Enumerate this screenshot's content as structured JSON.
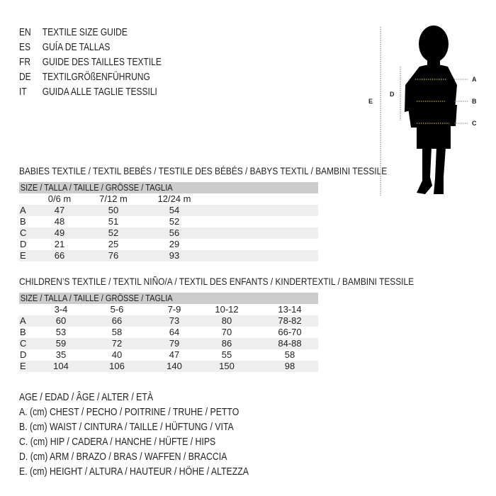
{
  "titles": [
    {
      "code": "EN",
      "text": "TEXTILE SIZE GUIDE"
    },
    {
      "code": "ES",
      "text": "GUÍA DE TALLAS"
    },
    {
      "code": "FR",
      "text": "GUIDE DES TAILLES TEXTILE"
    },
    {
      "code": "DE",
      "text": "TEXTILGRÖßENFÜHRUNG"
    },
    {
      "code": "IT",
      "text": "GUIDA ALLE TAGLIE TESSILI"
    }
  ],
  "babies": {
    "heading": "BABIES TEXTILE / TEXTIL BEBÉS / TESTILE DES BÉBÉS / BABYS TEXTIL / BAMBINI TESSILE",
    "size_header": "SIZE / TALLA / TAILLE / GRÖSSE / TAGLIA",
    "columns": [
      "0/6 m",
      "7/12 m",
      "12/24 m"
    ],
    "rows": [
      {
        "label": "A",
        "values": [
          "47",
          "50",
          "54"
        ]
      },
      {
        "label": "B",
        "values": [
          "48",
          "51",
          "52"
        ]
      },
      {
        "label": "C",
        "values": [
          "49",
          "52",
          "56"
        ]
      },
      {
        "label": "D",
        "values": [
          "21",
          "25",
          "29"
        ]
      },
      {
        "label": "E",
        "values": [
          "66",
          "76",
          "93"
        ]
      }
    ]
  },
  "children": {
    "heading": "CHILDREN’S TEXTILE / TEXTIL NIÑO/A / TEXTIL DES ENFANTS / KINDERTEXTIL / BAMBINI TESSILE",
    "size_header": "SIZE / TALLA / TAILLE / GRÖSSE / TAGLIA",
    "columns": [
      "3-4",
      "5-6",
      "7-9",
      "10-12",
      "13-14"
    ],
    "rows": [
      {
        "label": "A",
        "values": [
          "60",
          "66",
          "73",
          "80",
          "78-82"
        ]
      },
      {
        "label": "B",
        "values": [
          "53",
          "58",
          "64",
          "70",
          "66-70"
        ]
      },
      {
        "label": "C",
        "values": [
          "59",
          "72",
          "79",
          "86",
          "84-88"
        ]
      },
      {
        "label": "D",
        "values": [
          "35",
          "40",
          "47",
          "55",
          "58"
        ]
      },
      {
        "label": "E",
        "values": [
          "104",
          "106",
          "140",
          "150",
          "98"
        ]
      }
    ]
  },
  "legend": [
    "AGE / EDAD / ÂGE / ALTER / ETÀ",
    "A. (cm) CHEST / PECHO / POITRINE / TRUHE / PETTO",
    "B. (cm) WAIST / CINTURA / TAILLE / HÜFTUNG / VITA",
    "C. (cm) HIP / CADERA / HANCHE / HÜFTE / HIPS",
    "D. (cm) ARM / BRAZO / BRAS / WAFFEN / BRACCIA",
    "E. (cm) HEIGHT / ALTURA / HAUTEUR / HÖHE / ALTEZZA"
  ],
  "figure": {
    "labels": {
      "a": "A",
      "b": "B",
      "c": "C",
      "d": "D",
      "e": "E"
    },
    "measure_color": "#e8d44a"
  }
}
